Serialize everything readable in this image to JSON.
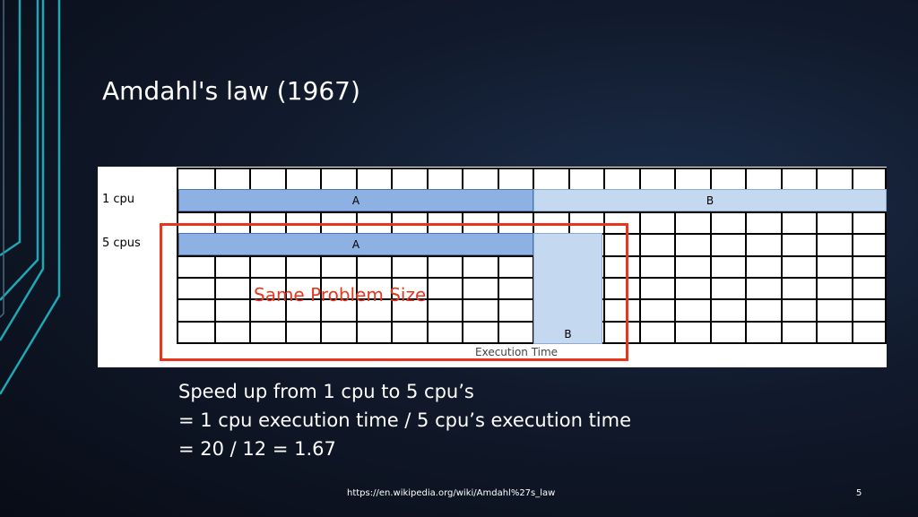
{
  "slide": {
    "title": "Amdahl's law (1967)",
    "page_number": "5",
    "source_url": "https://en.wikipedia.org/wiki/Amdahl%27s_law"
  },
  "diagram": {
    "row_labels": [
      "1 cpu",
      "5 cpus"
    ],
    "bar_a_label": "A",
    "bar_b_label": "B",
    "axis_label": "Execution Time",
    "overlay_label": "Same Problem Size",
    "colors": {
      "bar_a": "#8db1e2",
      "bar_b": "#c4d8ef",
      "highlight": "#e8361e"
    }
  },
  "body_lines": [
    "Speed up from 1 cpu to 5 cpu’s",
    "= 1 cpu execution time / 5 cpu’s execution time",
    "= 20 / 12 = 1.67"
  ]
}
